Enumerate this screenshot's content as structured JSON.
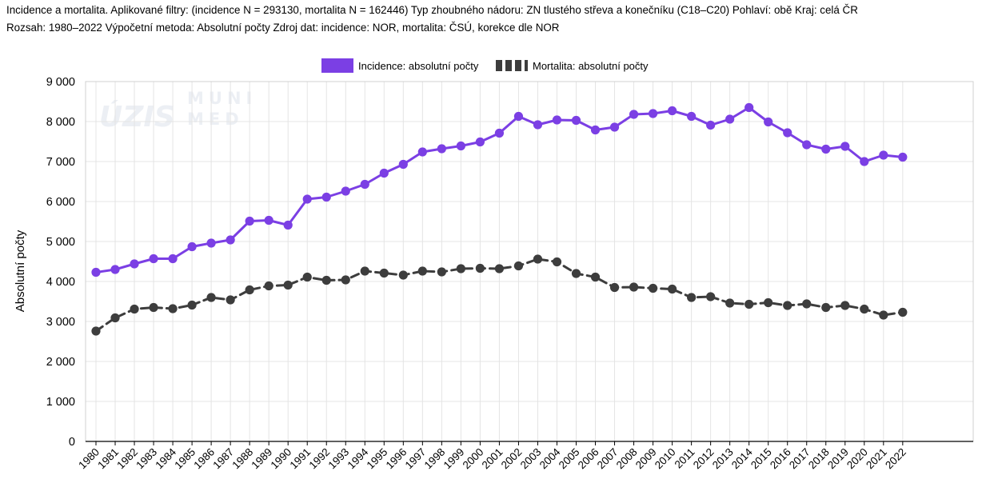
{
  "header": {
    "line1": "Incidence a mortalita. Aplikované filtry: (incidence N = 293130, mortalita N = 162446) Typ zhoubného nádoru: ZN tlustého střeva a konečníku (C18–C20) Pohlaví: obě Kraj: celá ČR",
    "line2": "Rozsah: 1980–2022 Výpočetní metoda: Absolutní počty Zdroj dat: incidence: NOR, mortalita: ČSÚ, korekce dle NOR"
  },
  "watermark": {
    "logo1": "ÚZIS",
    "logo2_line1": "MUNI",
    "logo2_line2": "MED"
  },
  "chart_data": {
    "type": "line",
    "x": [
      "1980",
      "1981",
      "1982",
      "1983",
      "1984",
      "1985",
      "1986",
      "1987",
      "1988",
      "1989",
      "1990",
      "1991",
      "1992",
      "1993",
      "1994",
      "1995",
      "1996",
      "1997",
      "1998",
      "1999",
      "2000",
      "2001",
      "2002",
      "2003",
      "2004",
      "2005",
      "2006",
      "2007",
      "2008",
      "2009",
      "2010",
      "2011",
      "2012",
      "2013",
      "2014",
      "2015",
      "2016",
      "2017",
      "2018",
      "2019",
      "2020",
      "2021",
      "2022"
    ],
    "ylabel": "Absolutní počty",
    "ylim": [
      0,
      9000
    ],
    "yticks": [
      0,
      1000,
      2000,
      3000,
      4000,
      5000,
      6000,
      7000,
      8000,
      9000
    ],
    "ytick_labels": [
      "0",
      "1 000",
      "2 000",
      "3 000",
      "4 000",
      "5 000",
      "6 000",
      "7 000",
      "8 000",
      "9 000"
    ],
    "grid": true,
    "legend_position": "top-center",
    "series": [
      {
        "name": "Incidence: absolutní počty",
        "color": "#7b3fe4",
        "dash": "solid",
        "values": [
          4230,
          4300,
          4440,
          4570,
          4570,
          4870,
          4960,
          5040,
          5510,
          5530,
          5410,
          6060,
          6110,
          6260,
          6430,
          6710,
          6930,
          7240,
          7320,
          7390,
          7490,
          7710,
          8130,
          7920,
          8040,
          8030,
          7790,
          7860,
          8180,
          8200,
          8270,
          8130,
          7910,
          8060,
          8350,
          7990,
          7720,
          7420,
          7310,
          7380,
          7000,
          7160,
          7110
        ]
      },
      {
        "name": "Mortalita: absolutní počty",
        "color": "#3d3d3d",
        "dash": "dashed",
        "values": [
          2760,
          3090,
          3310,
          3350,
          3320,
          3410,
          3600,
          3540,
          3790,
          3890,
          3910,
          4110,
          4030,
          4040,
          4260,
          4210,
          4160,
          4260,
          4240,
          4320,
          4330,
          4320,
          4390,
          4560,
          4490,
          4200,
          4110,
          3850,
          3860,
          3830,
          3810,
          3600,
          3620,
          3460,
          3430,
          3470,
          3400,
          3440,
          3350,
          3400,
          3310,
          3160,
          3230
        ]
      }
    ]
  }
}
